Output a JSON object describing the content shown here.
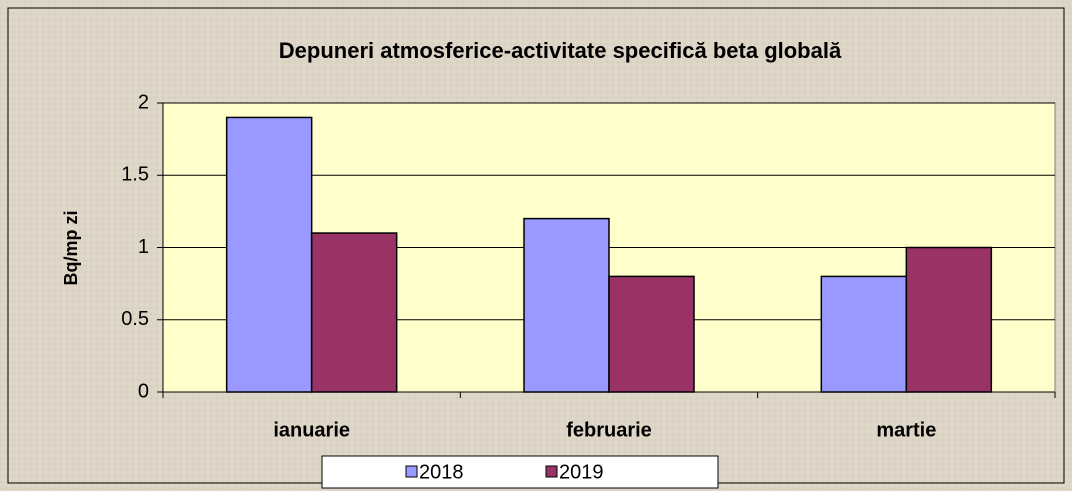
{
  "chart_data": {
    "type": "bar",
    "title": "Depuneri atmosferice-activitate specifică beta globală",
    "y_label": "Bq/mp zi",
    "categories": [
      "ianuarie",
      "februarie",
      "martie"
    ],
    "series": [
      {
        "name": "2018",
        "color": "#9999ff",
        "values": [
          1.9,
          1.2,
          0.8
        ]
      },
      {
        "name": "2019",
        "color": "#993366",
        "values": [
          1.1,
          0.8,
          1.0
        ]
      }
    ],
    "ylim": [
      0,
      2
    ],
    "yticks": [
      0,
      0.5,
      1,
      1.5,
      2
    ],
    "grid": true,
    "legend": "bottom"
  }
}
